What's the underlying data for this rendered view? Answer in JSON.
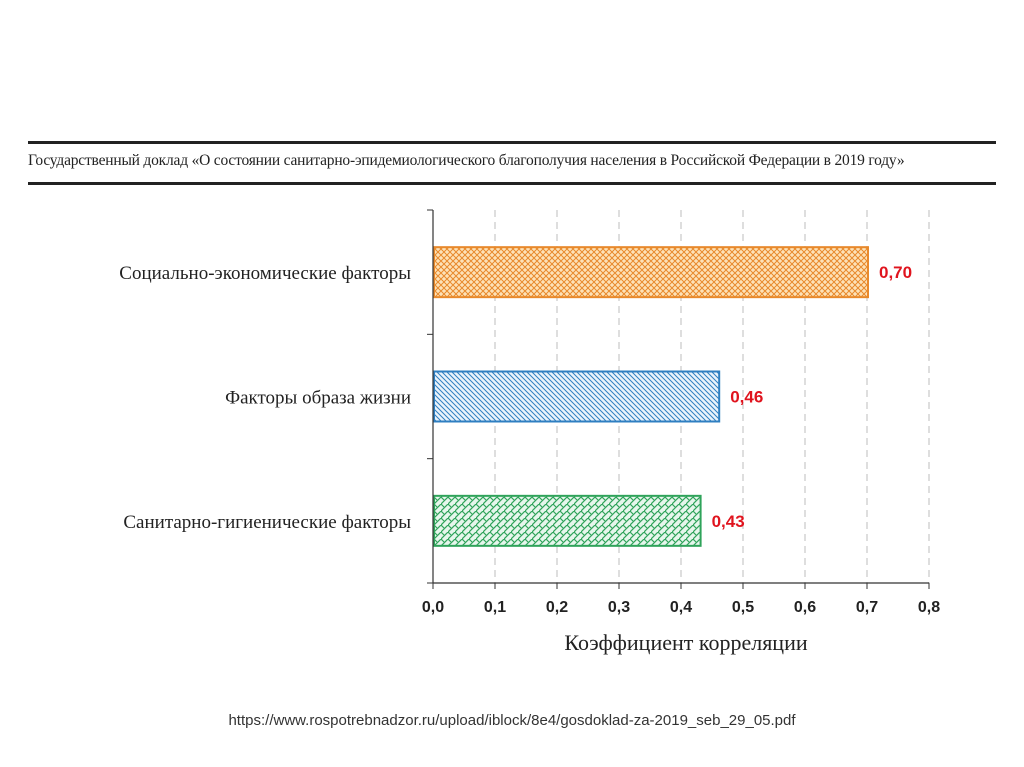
{
  "report_title": "Государственный доклад «О состоянии санитарно-эпидемиологического благополучия населения в Российской Федерации в 2019 году»",
  "source_url": "https://www.rospotrebnadzor.ru/upload/iblock/8e4/gosdoklad-za-2019_seb_29_05.pdf",
  "chart_data": {
    "type": "bar",
    "orientation": "horizontal",
    "categories": [
      "Социально-экономические факторы",
      "Факторы образа жизни",
      "Санитарно-гигиенические факторы"
    ],
    "values": [
      0.7,
      0.46,
      0.43
    ],
    "value_labels": [
      "0,70",
      "0,46",
      "0,43"
    ],
    "bar_colors": [
      "#e8892b",
      "#2f7fc1",
      "#2fa35a"
    ],
    "label_color": "#e0141e",
    "xlabel": "Коэффициент корреляции",
    "xlim": [
      0,
      0.8
    ],
    "x_ticks": [
      "0,0",
      "0,1",
      "0,2",
      "0,3",
      "0,4",
      "0,5",
      "0,6",
      "0,7",
      "0,8"
    ],
    "grid": "vertical-dashed"
  }
}
